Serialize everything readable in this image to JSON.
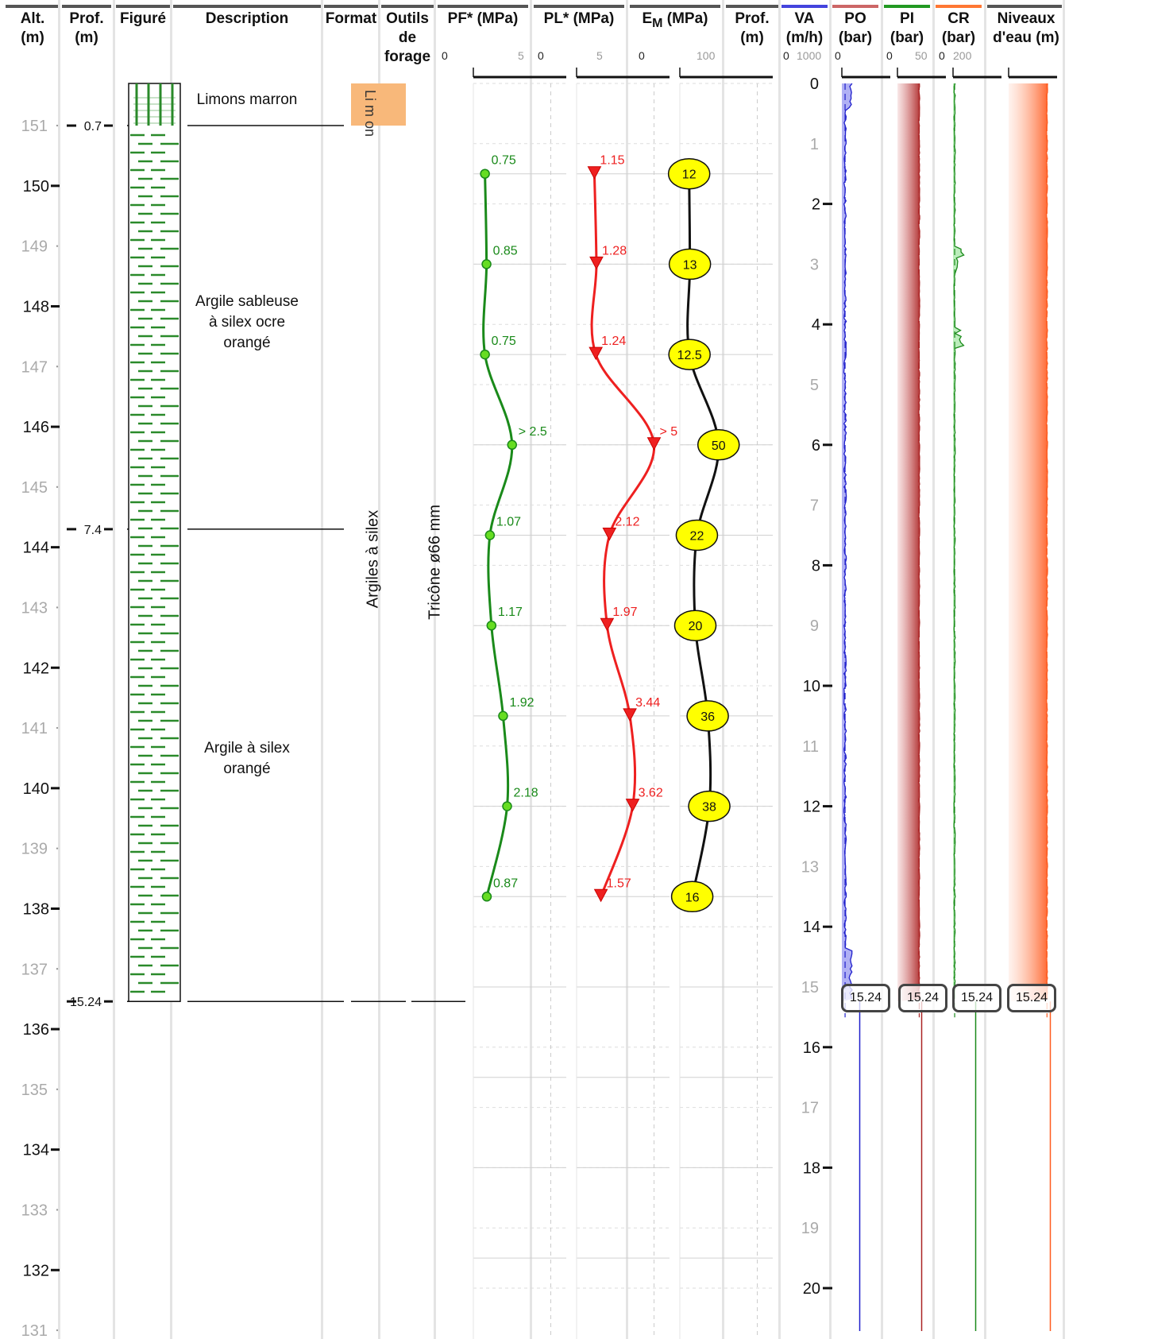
{
  "headers": {
    "alt": "Alt.\n(m)",
    "prof": "Prof.\n(m)",
    "figure": "Figuré",
    "description": "Description",
    "format": "Format",
    "outils": "Outils\nde\nforage",
    "pf": "PF* (MPa)",
    "pl": "PL* (MPa)",
    "em": "E",
    "em_sub": "M",
    "em_unit": " (MPa)",
    "prof2": "Prof.\n(m)",
    "va": "VA\n(m/h)",
    "po": "PO\n(bar)",
    "pi": "PI\n(bar)",
    "cr": "CR\n(bar)",
    "niveaux": "Niveaux\nd'eau (m)"
  },
  "scales": {
    "pf": [
      "0",
      "5"
    ],
    "pl": [
      "0",
      "5"
    ],
    "em": [
      "0",
      "100"
    ],
    "va": [
      "0",
      "1000"
    ],
    "po": [
      "0"
    ],
    "pi": [
      "0",
      "50"
    ],
    "cr": [
      "0",
      "200"
    ]
  },
  "altitudes": {
    "major": [
      "150",
      "148",
      "146",
      "144",
      "142",
      "140",
      "138",
      "136",
      "134",
      "132"
    ],
    "minor": [
      "151",
      "149",
      "147",
      "145",
      "143",
      "141",
      "139",
      "137",
      "135",
      "133",
      "131"
    ]
  },
  "depths": {
    "major": [
      "2",
      "4",
      "6",
      "8",
      "10",
      "12",
      "14",
      "16",
      "18",
      "20"
    ],
    "minor": [
      "0",
      "1",
      "3",
      "5",
      "7",
      "9",
      "11",
      "13",
      "15",
      "17",
      "19"
    ]
  },
  "layer_depths": [
    "0.7",
    "7.4",
    "15.24"
  ],
  "layers": [
    {
      "description": "Limons marron",
      "format": "Li\nm\non"
    },
    {
      "description": "Argile sableuse\nà silex ocre\norangé"
    },
    {
      "description": "Argile à silex\norangé"
    }
  ],
  "format_label": "Argiles à silex",
  "outil_label": "Tricône ø66 mm",
  "end_depth_badges": [
    "15.24",
    "15.24",
    "15.24",
    "15.24"
  ],
  "colors": {
    "pf": "#1a8a1a",
    "pf_marker": "#66dd22",
    "pl": "#ee2020",
    "em_fill": "#ffff00",
    "va": "#2020cc",
    "po": "#aa2222",
    "pi": "#1a8a1a",
    "cr": "#ff5a1e",
    "format_fill": "#f8b87a"
  },
  "chart_data": {
    "type": "line",
    "y_axis": "depth (m)",
    "depth_range": [
      0,
      21
    ],
    "pressiometric_tests": {
      "depths": [
        1.5,
        3.0,
        4.5,
        6.0,
        7.5,
        9.0,
        10.5,
        12.0,
        13.5
      ],
      "pf": [
        0.75,
        0.85,
        0.75,
        2.5,
        1.07,
        1.17,
        1.92,
        2.18,
        0.87
      ],
      "pf_labels": [
        "0.75",
        "0.85",
        "0.75",
        "> 2.5",
        "1.07",
        "1.17",
        "1.92",
        "2.18",
        "0.87"
      ],
      "pl": [
        1.15,
        1.28,
        1.24,
        5.0,
        2.12,
        1.97,
        3.44,
        3.62,
        1.57
      ],
      "pl_labels": [
        "1.15",
        "1.28",
        "1.24",
        "> 5",
        "2.12",
        "1.97",
        "3.44",
        "3.62",
        "1.57"
      ],
      "em": [
        12,
        13,
        12.5,
        50,
        22,
        20,
        36,
        38,
        16
      ],
      "em_labels": [
        "12",
        "13",
        "12.5",
        "50",
        "22",
        "20",
        "36",
        "38",
        "16"
      ],
      "pf_range": [
        0,
        6
      ],
      "pl_range": [
        0,
        6
      ],
      "em_range": [
        0,
        120
      ]
    },
    "drilling_parameters": {
      "depth_end": 15.24,
      "va": {
        "range": [
          0,
          1200
        ],
        "baseline": 80
      },
      "po": {
        "range": [
          0,
          100
        ],
        "baseline": 45
      },
      "pi": {
        "range": [
          0,
          60
        ],
        "baseline": 2
      },
      "cr": {
        "range": [
          0,
          240
        ],
        "baseline": 190
      }
    }
  }
}
